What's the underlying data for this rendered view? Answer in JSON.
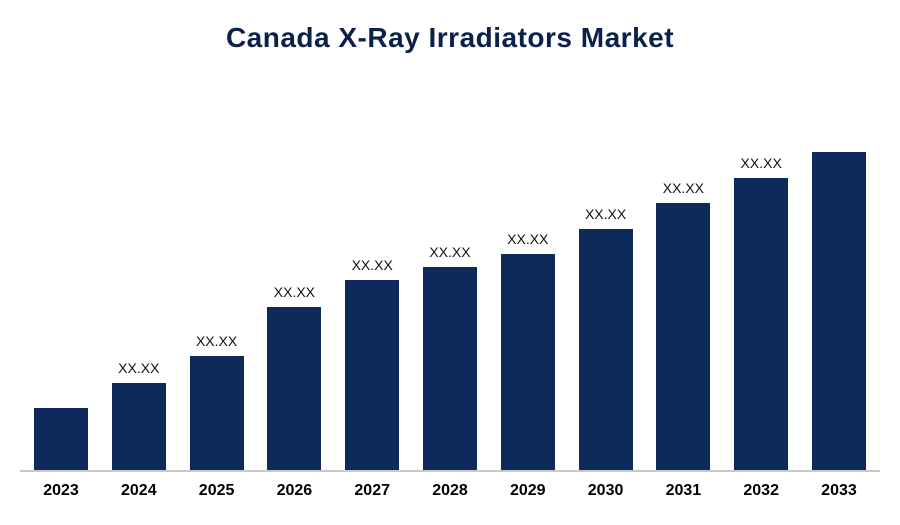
{
  "title": "Canada X-Ray Irradiators Market",
  "chart_data": {
    "type": "bar",
    "title": "Canada X-Ray Irradiators Market",
    "categories": [
      "2023",
      "2024",
      "2025",
      "2026",
      "2027",
      "2028",
      "2029",
      "2030",
      "2031",
      "2032",
      "2033"
    ],
    "values": [
      62,
      87,
      114,
      163,
      190,
      203,
      216,
      241,
      267,
      292,
      318
    ],
    "value_labels": [
      "",
      "XX.XX",
      "XX.XX",
      "XX.XX",
      "XX.XX",
      "XX.XX",
      "XX.XX",
      "XX.XX",
      "XX.XX",
      "XX.XX",
      ""
    ],
    "xlabel": "",
    "ylabel": "",
    "ylim": [
      0,
      360
    ],
    "grid": false,
    "legend_position": "none",
    "bar_color": "#0e2a5a",
    "axis_line_color": "#c9c9c9"
  }
}
